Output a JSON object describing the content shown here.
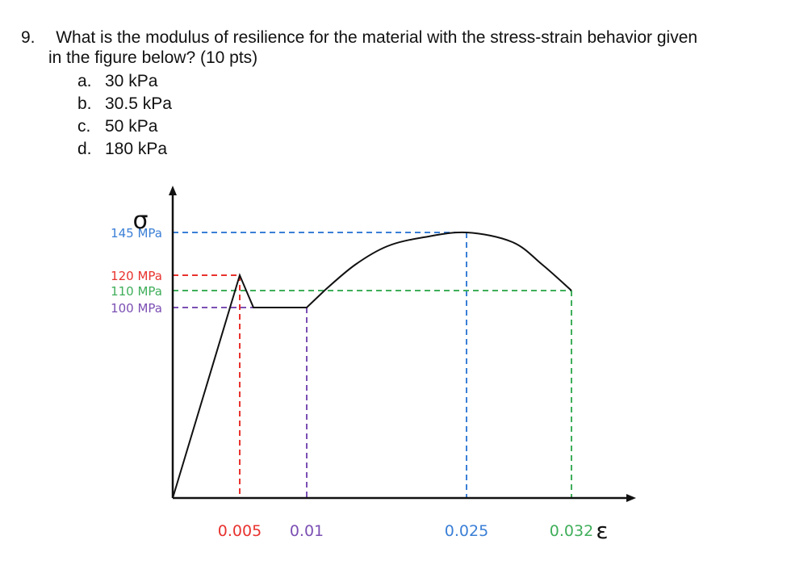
{
  "question": {
    "number": "9.",
    "text_line1": "What is the modulus of resilience for the material with the stress-strain behavior given",
    "text_line2": "in the figure below? (10 pts)",
    "options": [
      {
        "letter": "a.",
        "text": "30 kPa"
      },
      {
        "letter": "b.",
        "text": "30.5 kPa"
      },
      {
        "letter": "c.",
        "text": "50 kPa"
      },
      {
        "letter": "d.",
        "text": "180 kPa"
      }
    ]
  },
  "chart_data": {
    "type": "line",
    "ylabel": "σ",
    "xlabel": "ε",
    "x_ticks": [
      {
        "value": 0.005,
        "label": "0.005",
        "color": "#e8322e"
      },
      {
        "value": 0.01,
        "label": "0.01",
        "color": "#7b4fb3"
      },
      {
        "value": 0.025,
        "label": "0.025",
        "color": "#3a7fd6"
      },
      {
        "value": 0.032,
        "label": "0.032",
        "color": "#3fae5a"
      }
    ],
    "y_ticks": [
      {
        "value": 145,
        "label": "145 MPa",
        "color": "#3a7fd6"
      },
      {
        "value": 120,
        "label": "120 MPa",
        "color": "#e8322e"
      },
      {
        "value": 110,
        "label": "110 MPa",
        "color": "#3fae5a"
      },
      {
        "value": 100,
        "label": "100 MPa",
        "color": "#7b4fb3"
      }
    ],
    "curve": [
      {
        "x": 0,
        "y": 0
      },
      {
        "x": 0.005,
        "y": 120
      },
      {
        "x": 0.006,
        "y": 100
      },
      {
        "x": 0.01,
        "y": 100
      },
      {
        "x": 0.012,
        "y": 110
      },
      {
        "x": 0.015,
        "y": 125
      },
      {
        "x": 0.018,
        "y": 135
      },
      {
        "x": 0.021,
        "y": 141
      },
      {
        "x": 0.025,
        "y": 145
      },
      {
        "x": 0.028,
        "y": 138
      },
      {
        "x": 0.03,
        "y": 125
      },
      {
        "x": 0.032,
        "y": 110
      }
    ],
    "guides": [
      {
        "x": 0.005,
        "y": 120,
        "color": "#e8322e"
      },
      {
        "x": 0.01,
        "y": 100,
        "color": "#7b4fb3"
      },
      {
        "x": 0.025,
        "y": 145,
        "color": "#3a7fd6"
      },
      {
        "x": 0.032,
        "y": 110,
        "color": "#3fae5a"
      }
    ],
    "xlim": [
      0,
      0.034
    ],
    "ylim": [
      0,
      160
    ],
    "grid": false,
    "curve_color": "#111111",
    "axis_color": "#111111"
  }
}
